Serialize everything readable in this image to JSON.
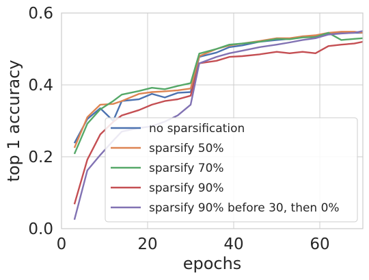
{
  "chart_data": {
    "type": "line",
    "xlabel": "epochs",
    "ylabel": "top 1 accuracy",
    "xlim": [
      0,
      70
    ],
    "ylim": [
      0.0,
      0.6
    ],
    "xticks": [
      0,
      20,
      40,
      60
    ],
    "yticks": [
      0.0,
      0.2,
      0.4,
      0.6
    ],
    "xtick_labels": [
      "0",
      "20",
      "40",
      "60"
    ],
    "ytick_labels": [
      "0.0",
      "0.2",
      "0.4",
      "0.6"
    ],
    "grid": true,
    "legend_position": "lower-right",
    "series": [
      {
        "name": "no sparsification",
        "color": "#4c72b0",
        "x": [
          3,
          6,
          9,
          12,
          14,
          18,
          21,
          24,
          27,
          30,
          32,
          36,
          39,
          42,
          46,
          50,
          53,
          56,
          59,
          62,
          65,
          68,
          70
        ],
        "y": [
          0.238,
          0.305,
          0.335,
          0.3,
          0.355,
          0.36,
          0.375,
          0.365,
          0.378,
          0.38,
          0.478,
          0.49,
          0.505,
          0.51,
          0.52,
          0.525,
          0.528,
          0.535,
          0.535,
          0.543,
          0.545,
          0.545,
          0.545
        ]
      },
      {
        "name": "sparsify 50%",
        "color": "#dd8452",
        "x": [
          3,
          6,
          9,
          12,
          14,
          18,
          21,
          24,
          27,
          30,
          32,
          36,
          39,
          42,
          46,
          50,
          53,
          56,
          59,
          62,
          65,
          68,
          70
        ],
        "y": [
          0.225,
          0.31,
          0.345,
          0.347,
          0.355,
          0.375,
          0.38,
          0.382,
          0.385,
          0.39,
          0.48,
          0.5,
          0.51,
          0.515,
          0.522,
          0.53,
          0.53,
          0.535,
          0.538,
          0.545,
          0.548,
          0.548,
          0.545
        ]
      },
      {
        "name": "sparsify 70%",
        "color": "#55a868",
        "x": [
          3,
          6,
          9,
          12,
          14,
          18,
          21,
          24,
          27,
          30,
          32,
          36,
          39,
          42,
          46,
          50,
          53,
          56,
          59,
          62,
          65,
          68,
          70
        ],
        "y": [
          0.208,
          0.292,
          0.332,
          0.355,
          0.373,
          0.383,
          0.392,
          0.388,
          0.397,
          0.405,
          0.487,
          0.5,
          0.512,
          0.515,
          0.52,
          0.528,
          0.527,
          0.532,
          0.533,
          0.545,
          0.525,
          0.528,
          0.53
        ]
      },
      {
        "name": "sparsify 90%",
        "color": "#c44e52",
        "x": [
          3,
          6,
          9,
          12,
          14,
          18,
          21,
          24,
          27,
          30,
          32,
          36,
          39,
          42,
          46,
          50,
          53,
          56,
          59,
          62,
          65,
          68,
          70
        ],
        "y": [
          0.068,
          0.192,
          0.262,
          0.297,
          0.315,
          0.33,
          0.345,
          0.355,
          0.36,
          0.37,
          0.46,
          0.467,
          0.478,
          0.48,
          0.485,
          0.492,
          0.488,
          0.492,
          0.488,
          0.508,
          0.512,
          0.515,
          0.52
        ]
      },
      {
        "name": "sparsify 90% before 30, then 0%",
        "color": "#8172b3",
        "x": [
          3,
          6,
          9,
          12,
          14,
          18,
          21,
          24,
          27,
          30,
          32,
          36,
          39,
          42,
          46,
          50,
          53,
          56,
          59,
          62,
          65,
          68,
          70
        ],
        "y": [
          0.025,
          0.162,
          0.205,
          0.245,
          0.27,
          0.28,
          0.285,
          0.298,
          0.315,
          0.345,
          0.46,
          0.478,
          0.488,
          0.495,
          0.505,
          0.512,
          0.518,
          0.525,
          0.53,
          0.54,
          0.543,
          0.545,
          0.55
        ]
      }
    ]
  }
}
